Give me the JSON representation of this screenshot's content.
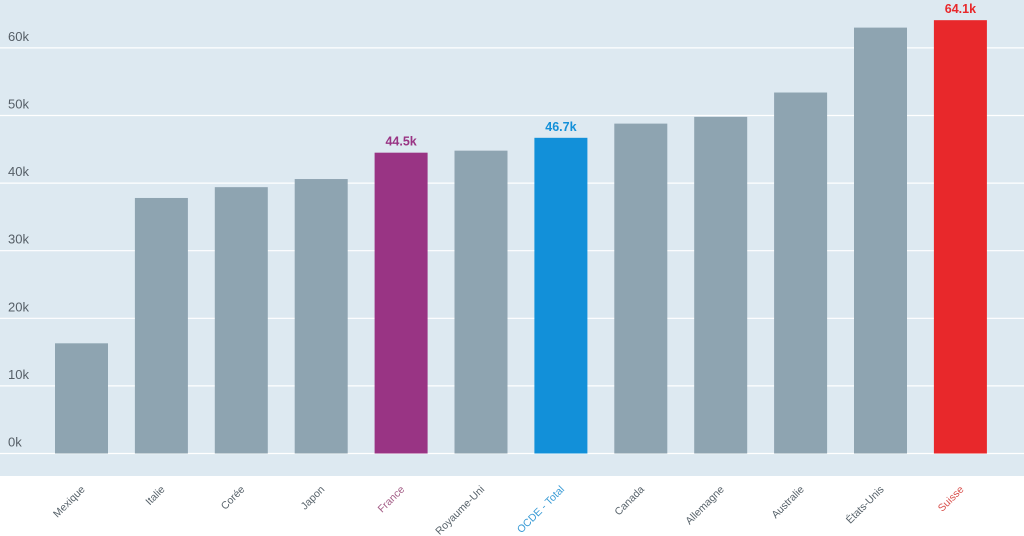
{
  "chart_data": {
    "type": "bar",
    "title": "",
    "xlabel": "",
    "ylabel": "",
    "ylim": [
      0,
      66000
    ],
    "yticks": [
      0,
      10000,
      20000,
      30000,
      40000,
      50000,
      60000
    ],
    "ytick_labels": [
      "0k",
      "10k",
      "20k",
      "30k",
      "40k",
      "50k",
      "60k"
    ],
    "grid": true,
    "legend": "none",
    "categories": [
      "Mexique",
      "Italie",
      "Corée",
      "Japon",
      "France",
      "Royaume-Uni",
      "OCDE - Total",
      "Canada",
      "Allemagne",
      "Australie",
      "États-Unis",
      "Suisse"
    ],
    "values": [
      16300,
      37800,
      39400,
      40600,
      44500,
      44800,
      46700,
      48800,
      49800,
      53400,
      63000,
      64100
    ],
    "bar_colors": [
      "#8ea4b1",
      "#8ea4b1",
      "#8ea4b1",
      "#8ea4b1",
      "#993484",
      "#8ea4b1",
      "#1290d9",
      "#8ea4b1",
      "#8ea4b1",
      "#8ea4b1",
      "#8ea4b1",
      "#e8282b"
    ],
    "label_colors": [
      "#58636b",
      "#58636b",
      "#58636b",
      "#58636b",
      "#a35d86",
      "#58636b",
      "#3a9bd5",
      "#58636b",
      "#58636b",
      "#58636b",
      "#58636b",
      "#d9534f"
    ],
    "data_labels": [
      "",
      "",
      "",
      "",
      "44.5k",
      "",
      "46.7k",
      "",
      "",
      "",
      "",
      "64.1k"
    ],
    "colors": {
      "plot_background": "#dde9f1",
      "gridline": "#ffffff",
      "page_background": "#ffffff"
    }
  }
}
